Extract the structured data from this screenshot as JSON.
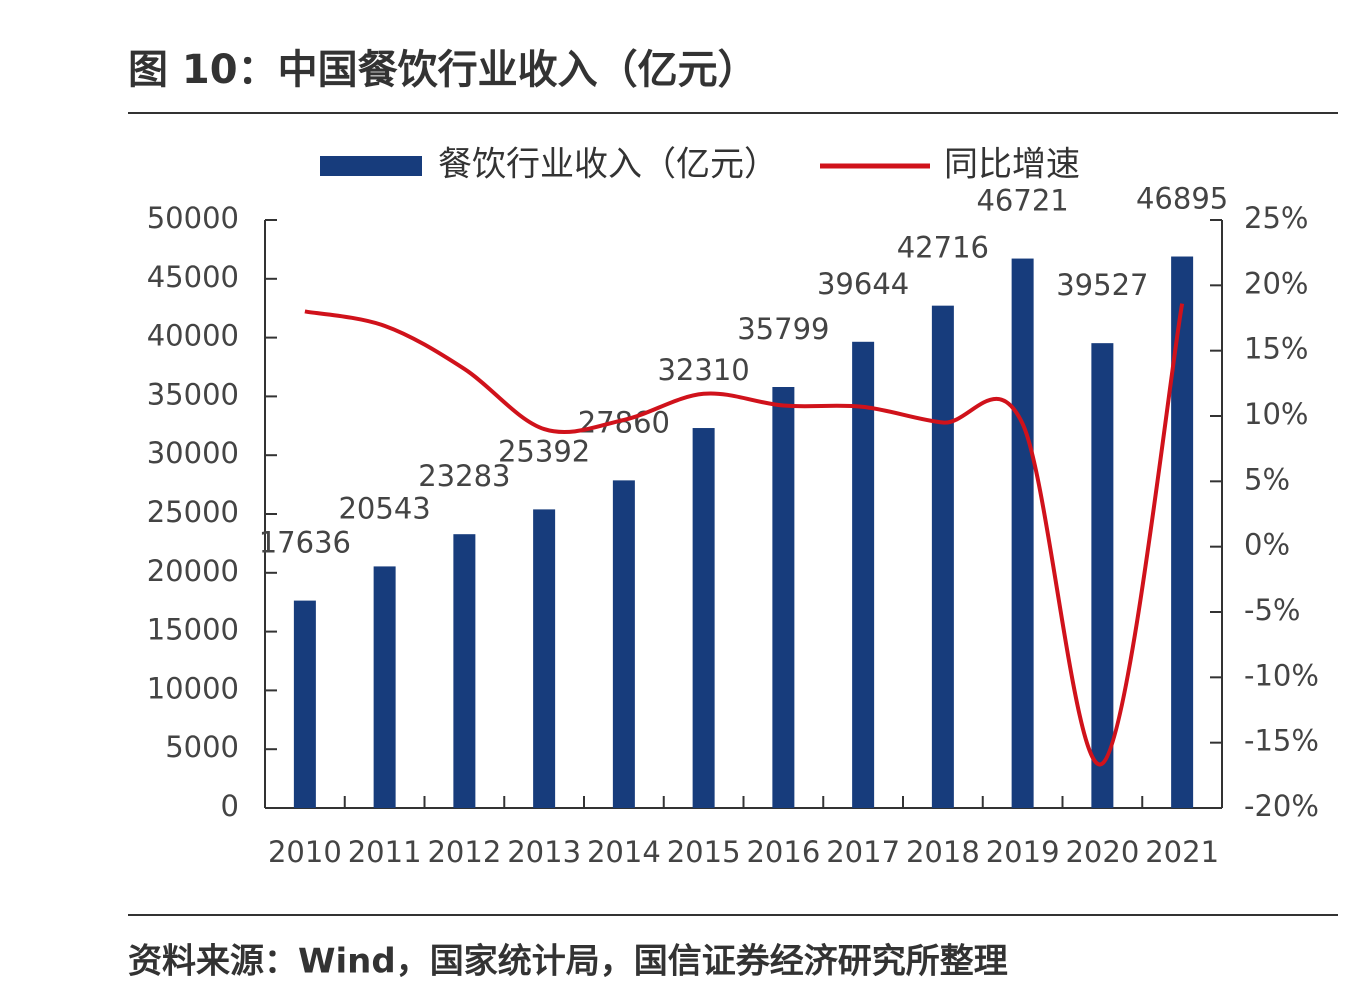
{
  "title": "图 10：中国餐饮行业收入（亿元）",
  "source": "资料来源：Wind，国家统计局，国信证券经济研究所整理",
  "chart_data": {
    "type": "bar-line",
    "categories": [
      "2010",
      "2011",
      "2012",
      "2013",
      "2014",
      "2015",
      "2016",
      "2017",
      "2018",
      "2019",
      "2020",
      "2021"
    ],
    "series": [
      {
        "name": "餐饮行业收入（亿元）",
        "type": "bar",
        "color": "#173c7c",
        "values": [
          17636,
          20543,
          23283,
          25392,
          27860,
          32310,
          35799,
          39644,
          42716,
          46721,
          39527,
          46895
        ]
      },
      {
        "name": "同比增速",
        "type": "line",
        "color": "#d0121b",
        "axis": "y2",
        "values": [
          18.0,
          16.9,
          13.6,
          9.0,
          9.7,
          11.7,
          10.8,
          10.7,
          9.5,
          9.4,
          -16.6,
          18.6
        ]
      }
    ],
    "ylim": [
      0,
      50000
    ],
    "yticks": [
      0,
      5000,
      10000,
      15000,
      20000,
      25000,
      30000,
      35000,
      40000,
      45000,
      50000
    ],
    "y2lim": [
      -20,
      25
    ],
    "y2ticks": [
      {
        "value": -20,
        "label": "-20%"
      },
      {
        "value": -15,
        "label": "-15%"
      },
      {
        "value": -10,
        "label": "-10%"
      },
      {
        "value": -5,
        "label": "-5%"
      },
      {
        "value": 0,
        "label": "0%"
      },
      {
        "value": 5,
        "label": "5%"
      },
      {
        "value": 10,
        "label": "10%"
      },
      {
        "value": 15,
        "label": "15%"
      },
      {
        "value": 20,
        "label": "20%"
      },
      {
        "value": 25,
        "label": "25%"
      }
    ],
    "legend": "top"
  }
}
